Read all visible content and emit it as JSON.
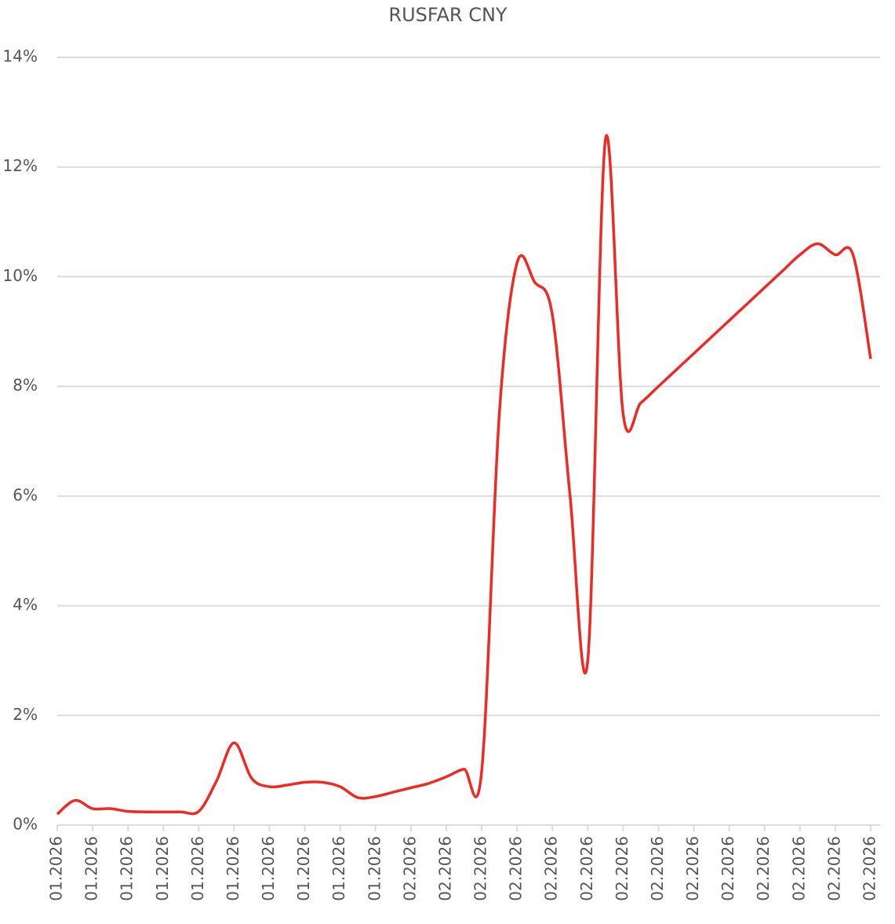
{
  "chart_data": {
    "type": "line",
    "title": "RUSFAR CNY",
    "categories": [
      "01.2026",
      null,
      "01.2026",
      null,
      "01.2026",
      null,
      "01.2026",
      null,
      "01.2026",
      null,
      "01.2026",
      null,
      "01.2026",
      null,
      "01.2026",
      null,
      "01.2026",
      null,
      "01.2026",
      null,
      "02.2026",
      null,
      "02.2026",
      null,
      "02.2026",
      null,
      "02.2026",
      null,
      "02.2026",
      null,
      "02.2026",
      null,
      "02.2026",
      null,
      "02.2026",
      null,
      "02.2026",
      null,
      "02.2026",
      null,
      "02.2026",
      null,
      "02.2026",
      null,
      "02.2026",
      null,
      "02.2026"
    ],
    "series": [
      {
        "name": "RUSFAR CNY",
        "color": "#ee2a24",
        "values": [
          0.2,
          0.45,
          0.3,
          0.3,
          0.25,
          0.24,
          0.24,
          0.24,
          0.25,
          0.8,
          1.5,
          0.85,
          0.7,
          0.73,
          0.78,
          0.78,
          0.7,
          0.5,
          0.52,
          0.6,
          0.68,
          0.76,
          0.88,
          1.02,
          0.98,
          7.5,
          10.25,
          9.9,
          9.3,
          6.0,
          3.0,
          12.5,
          7.5,
          7.7,
          8.0,
          8.3,
          8.6,
          8.9,
          9.2,
          9.5,
          9.8,
          10.1,
          10.4,
          10.6,
          10.4,
          10.4,
          8.5
        ]
      }
    ],
    "ylim": [
      0,
      14
    ],
    "yticks": [
      {
        "value": 0,
        "label": "0%"
      },
      {
        "value": 2,
        "label": "2%"
      },
      {
        "value": 4,
        "label": "4%"
      },
      {
        "value": 6,
        "label": "6%"
      },
      {
        "value": 8,
        "label": "8%"
      },
      {
        "value": 10,
        "label": "10%"
      },
      {
        "value": 12,
        "label": "12%"
      },
      {
        "value": 14,
        "label": "14%"
      }
    ],
    "grid": true
  }
}
